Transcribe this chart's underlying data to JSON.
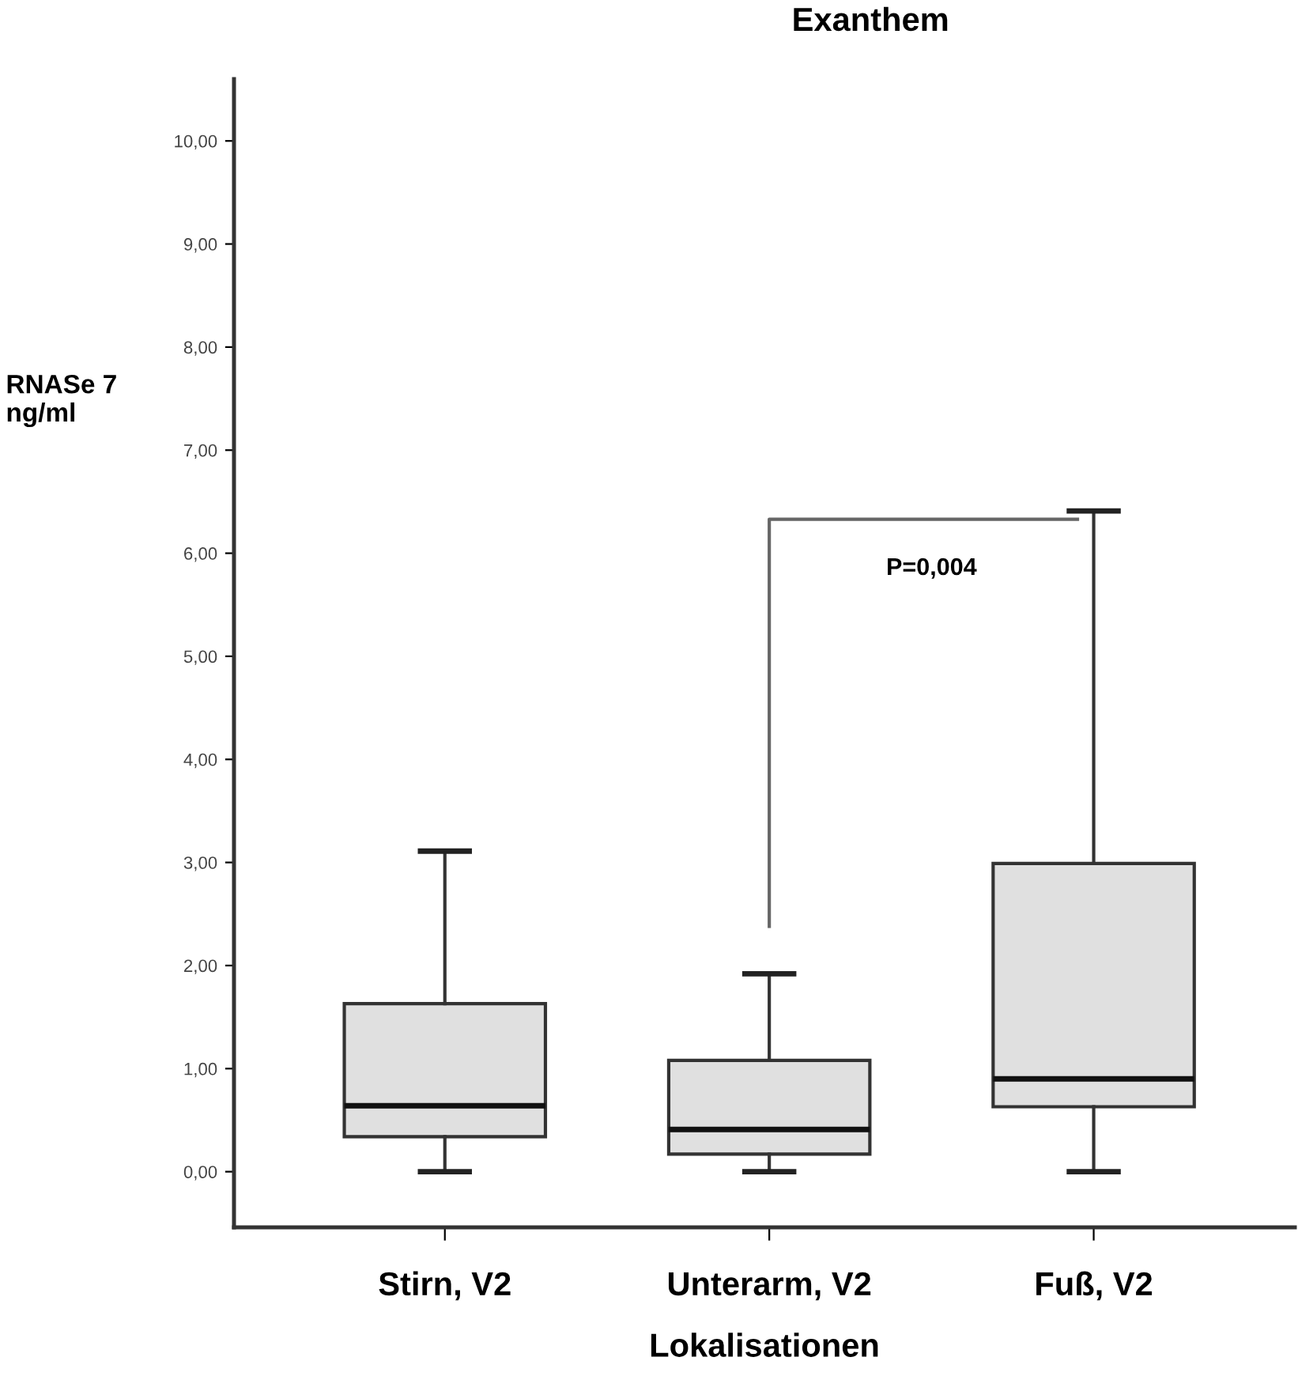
{
  "chart_data": {
    "type": "box",
    "title": "Exanthem",
    "xlabel": "Lokalisationen",
    "ylabel": "RNASe 7\nng/ml",
    "categories": [
      "Stirn, V2",
      "Unterarm, V2",
      "Fuß, V2"
    ],
    "boxes": [
      {
        "low": 0,
        "q1": 0.34,
        "median": 0.64,
        "q3": 1.63,
        "high": 3.11
      },
      {
        "low": 0,
        "q1": 0.17,
        "median": 0.41,
        "q3": 1.08,
        "high": 1.92
      },
      {
        "low": 0,
        "q1": 0.63,
        "median": 0.9,
        "q3": 2.99,
        "high": 6.41
      }
    ],
    "color": "#e0e0e0",
    "ylim": [
      -0.54,
      10.6
    ],
    "yticks": [
      {
        "value": 0,
        "label": "0,00"
      },
      {
        "value": 1,
        "label": "1,00"
      },
      {
        "value": 2,
        "label": "2,00"
      },
      {
        "value": 3,
        "label": "3,00"
      },
      {
        "value": 4,
        "label": "4,00"
      },
      {
        "value": 5,
        "label": "5,00"
      },
      {
        "value": 6,
        "label": "6,00"
      },
      {
        "value": 7,
        "label": "7,00"
      },
      {
        "value": 8,
        "label": "8,00"
      },
      {
        "value": 9,
        "label": "9,00"
      },
      {
        "value": 10,
        "label": "10,00"
      }
    ],
    "annotations": [
      "P=0,004"
    ],
    "grid": false
  }
}
